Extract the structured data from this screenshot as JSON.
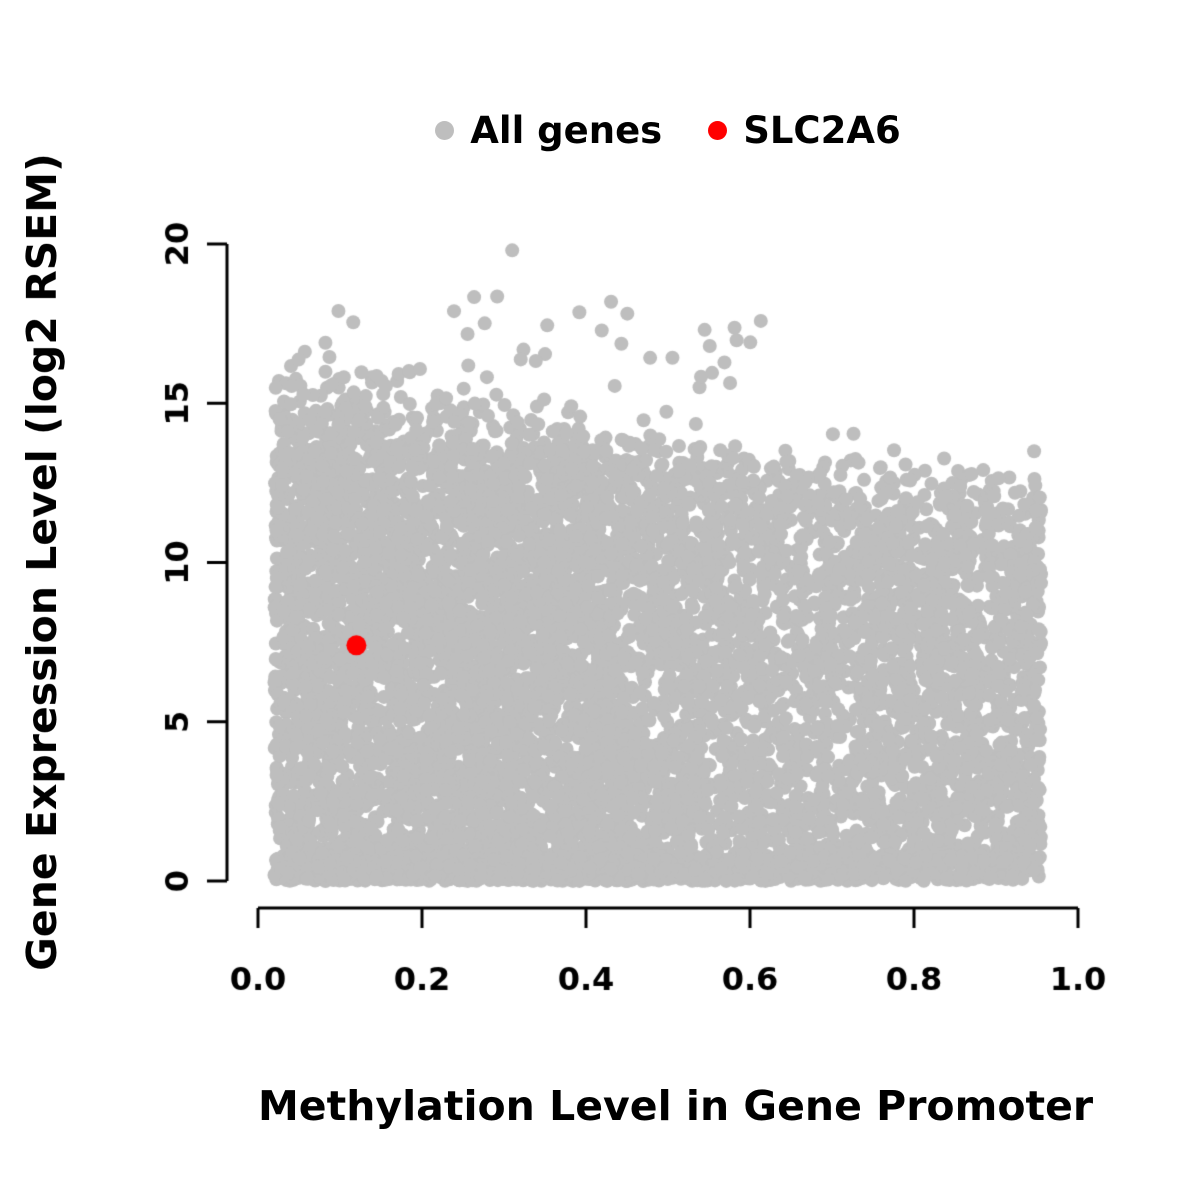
{
  "figure": {
    "background": "#ffffff",
    "axis_color": "#000000"
  },
  "legend": {
    "items": [
      {
        "label": "All genes",
        "color": "#bebebe"
      },
      {
        "label": "SLC2A6",
        "color": "#ff0000"
      }
    ]
  },
  "chart_data": {
    "type": "scatter",
    "title": "",
    "xlabel": "Methylation Level in Gene Promoter",
    "ylabel": "Gene Expression Level (log2 RSEM)",
    "xlim": [
      0,
      1
    ],
    "ylim": [
      0,
      20
    ],
    "x_ticks": [
      0.0,
      0.2,
      0.4,
      0.6,
      0.8,
      1.0
    ],
    "x_tick_labels": [
      "0.0",
      "0.2",
      "0.4",
      "0.6",
      "0.8",
      "1.0"
    ],
    "y_ticks": [
      0,
      5,
      10,
      15,
      20
    ],
    "y_tick_labels": [
      "0",
      "5",
      "10",
      "15",
      "20"
    ],
    "grid": false,
    "legend_position": "top-center",
    "series": [
      {
        "name": "All genes",
        "color": "#bebebe",
        "marker": "circle",
        "point_radius_px": 7,
        "representation": "procedural_cloud",
        "cloud": {
          "n_points": 9000,
          "seed": 42,
          "x_min": 0.02,
          "x_max": 0.955,
          "left_fraction": 0.58,
          "left_x_max": 0.45,
          "upper_envelope_y_at_x0": 15.3,
          "upper_envelope_y_at_x1": 11.4,
          "envelope_noise_sd": 0.8,
          "baseline_extra_fraction": 0.16,
          "baseline_band_max_y": 0.8,
          "outliers": {
            "n": 42,
            "x_min": 0.03,
            "x_max": 0.62,
            "y_min": 15.5,
            "y_max": 18.4
          },
          "max_point": {
            "x": 0.31,
            "y": 19.8
          }
        }
      },
      {
        "name": "SLC2A6",
        "color": "#ff0000",
        "marker": "circle",
        "point_radius_px": 10,
        "points": [
          [
            0.12,
            7.4
          ]
        ]
      }
    ]
  }
}
